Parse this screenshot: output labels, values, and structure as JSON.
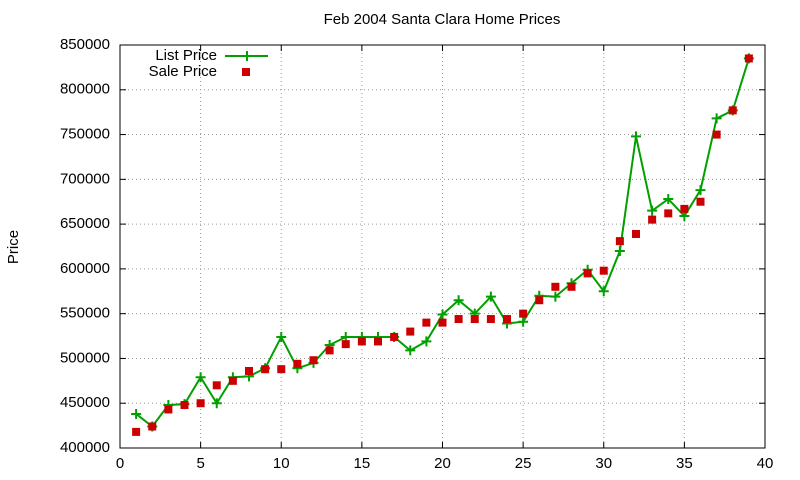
{
  "chart_data": {
    "type": "line",
    "title": "Feb 2004 Santa Clara Home Prices",
    "y_label": "Price",
    "x": [
      1,
      2,
      3,
      4,
      5,
      6,
      7,
      8,
      9,
      10,
      11,
      12,
      13,
      14,
      15,
      16,
      17,
      18,
      19,
      20,
      21,
      22,
      23,
      24,
      25,
      26,
      27,
      28,
      29,
      30,
      31,
      32,
      33,
      34,
      35,
      36,
      37,
      38,
      39
    ],
    "series": [
      {
        "name": "List Price",
        "color": "#00a000",
        "style": "linespoints",
        "values": [
          438000,
          424000,
          448000,
          449000,
          479000,
          450000,
          479000,
          480000,
          489000,
          524000,
          489000,
          495000,
          515000,
          524000,
          524000,
          524000,
          524000,
          509000,
          519000,
          549000,
          565000,
          550000,
          569000,
          539000,
          541000,
          570000,
          569000,
          584000,
          599000,
          575000,
          620000,
          748000,
          665000,
          678000,
          659000,
          688000,
          768000,
          777000,
          835000
        ]
      },
      {
        "name": "Sale Price",
        "color": "#cc0000",
        "style": "points",
        "values": [
          418000,
          424000,
          443000,
          448000,
          450000,
          470000,
          475000,
          486000,
          488000,
          488000,
          494000,
          498000,
          509000,
          516000,
          519000,
          519000,
          524000,
          530000,
          540000,
          540000,
          544000,
          544000,
          544000,
          544000,
          550000,
          565000,
          580000,
          580000,
          595000,
          598000,
          631000,
          639000,
          655000,
          662000,
          667000,
          675000,
          750000,
          777000,
          835000
        ]
      }
    ],
    "xlim": [
      0,
      40
    ],
    "xticks": [
      0,
      5,
      10,
      15,
      20,
      25,
      30,
      35,
      40
    ],
    "ylim": [
      400000,
      850000
    ],
    "yticks": [
      400000,
      450000,
      500000,
      550000,
      600000,
      650000,
      700000,
      750000,
      800000,
      850000
    ],
    "grid": true,
    "legend": "top-left"
  }
}
